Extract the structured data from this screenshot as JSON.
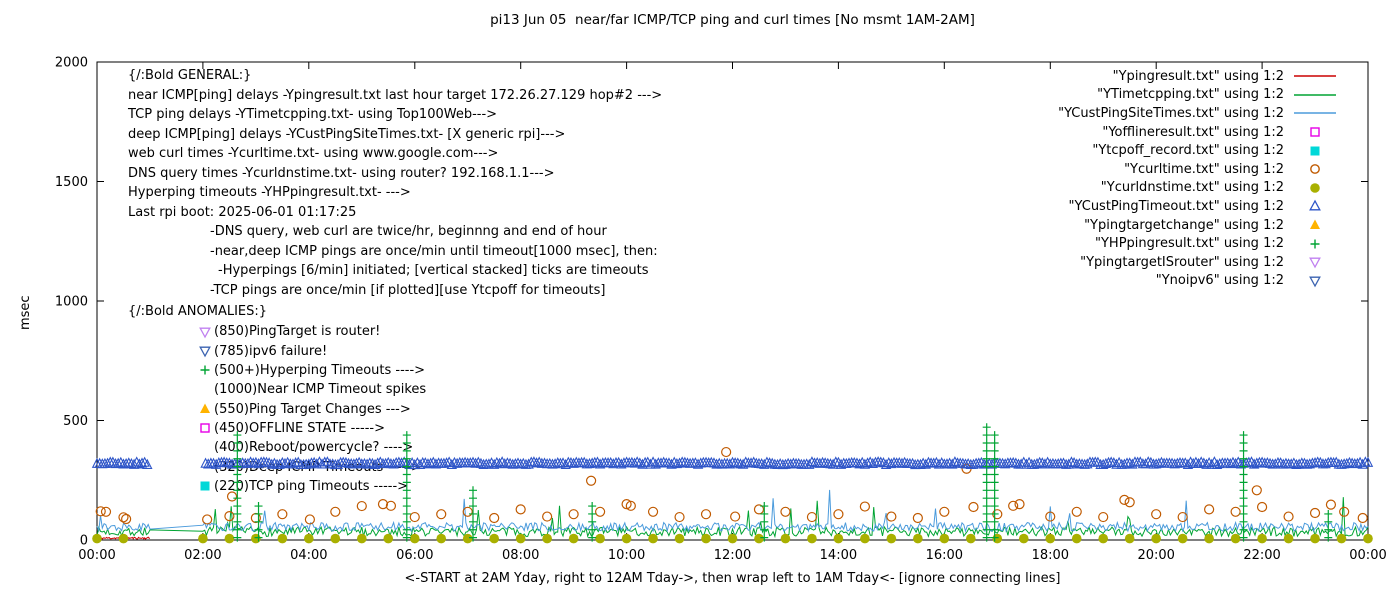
{
  "title": "pi13 Jun 05  near/far ICMP/TCP ping and curl times [No msmt 1AM-2AM]",
  "axes": {
    "ylabel": "msec",
    "x_caption": "<-START at 2AM Yday, right to 12AM Tday->, then wrap left to 1AM Tday<- [ignore connecting lines]"
  },
  "legend": [
    {
      "label": "\"Ypingresult.txt\" using 1:2",
      "marker": "hline",
      "color": "#cc0000"
    },
    {
      "label": "\"YTimetcpping.txt\" using 1:2",
      "marker": "hline",
      "color": "#00a433"
    },
    {
      "label": "\"YCustPingSiteTimes.txt\" using 1:2",
      "marker": "hline",
      "color": "#4b9bdc"
    },
    {
      "label": "\"Yofflineresult.txt\" using 1:2",
      "marker": "square-open",
      "color": "#e600e6"
    },
    {
      "label": "\"Ytcpoff_record.txt\" using 1:2",
      "marker": "square-filled",
      "color": "#00d8d8"
    },
    {
      "label": "\"Ycurltime.txt\" using 1:2",
      "marker": "circle-open",
      "color": "#c05a00"
    },
    {
      "label": "\"Ycurldnstime.txt\" using 1:2",
      "marker": "circle-filled",
      "color": "#a9b000"
    },
    {
      "label": "\"YCustPingTimeout.txt\" using 1:2",
      "marker": "tri-up-open",
      "color": "#2e55c8"
    },
    {
      "label": "\"Ypingtargetchange\" using 1:2",
      "marker": "tri-up-filled",
      "color": "#ffb300"
    },
    {
      "label": "\"YHPpingresult.txt\" using 1:2",
      "marker": "plus",
      "color": "#00a433"
    },
    {
      "label": "\"YpingtargetISrouter\" using 1:2",
      "marker": "tri-down-open",
      "color": "#c080f0"
    },
    {
      "label": "\"Ynoipv6\" using 1:2",
      "marker": "tri-down-open",
      "color": "#3a62b0"
    }
  ],
  "general_block": {
    "lines": [
      {
        "indent": 0,
        "text": "{/:Bold GENERAL:}"
      },
      {
        "indent": 0,
        "text": "near ICMP[ping] delays -Ypingresult.txt last hour target 172.26.27.129 hop#2 --->"
      },
      {
        "indent": 0,
        "text": "TCP ping delays -YTimetcpping.txt- using Top100Web--->"
      },
      {
        "indent": 0,
        "text": "deep ICMP[ping] delays -YCustPingSiteTimes.txt- [X generic rpi]--->"
      },
      {
        "indent": 0,
        "text": "web curl times -Ycurltime.txt- using www.google.com--->"
      },
      {
        "indent": 0,
        "text": "DNS query times -Ycurldnstime.txt- using router? 192.168.1.1--->"
      },
      {
        "indent": 0,
        "text": "Hyperping timeouts -YHPpingresult.txt- --->"
      },
      {
        "indent": 0,
        "text": "Last rpi boot: 2025-06-01 01:17:25"
      },
      {
        "indent": 1,
        "text": "-DNS query, web curl are twice/hr, beginnng and end of hour"
      },
      {
        "indent": 1,
        "text": "-near,deep ICMP pings are once/min until timeout[1000 msec], then:"
      },
      {
        "indent": 2,
        "text": "-Hyperpings [6/min] initiated; [vertical stacked] ticks are timeouts"
      },
      {
        "indent": 1,
        "text": "-TCP pings are once/min [if plotted][use Ytcpoff for timeouts]"
      }
    ]
  },
  "anomalies_block": {
    "heading": "{/:Bold ANOMALIES:}",
    "items": [
      {
        "marker": "tri-down-open",
        "color": "#c080f0",
        "text": "(850)PingTarget is router!"
      },
      {
        "marker": "tri-down-open",
        "color": "#3a62b0",
        "text": "(785)ipv6 failure!"
      },
      {
        "marker": "plus",
        "color": "#00a433",
        "text": "(500+)Hyperping Timeouts ---->"
      },
      {
        "marker": "none",
        "color": "",
        "text": "(1000)Near ICMP Timeout spikes"
      },
      {
        "marker": "tri-up-filled",
        "color": "#ffb300",
        "text": "(550)Ping Target Changes --->"
      },
      {
        "marker": "square-open",
        "color": "#e600e6",
        "text": "(450)OFFLINE STATE ----->"
      },
      {
        "marker": "none",
        "color": "",
        "text": "(400)Reboot/powercycle? ---->"
      },
      {
        "marker": "none",
        "color": "",
        "text": "(320)Deep ICMP Timeouts ----->"
      },
      {
        "marker": "square-filled",
        "color": "#00d8d8",
        "text": "(220)TCP ping Timeouts ----->"
      }
    ]
  },
  "chart_data": {
    "type": "line",
    "x_unit": "hours",
    "xlim": [
      0,
      24
    ],
    "ylim": [
      0,
      2000
    ],
    "grid": false,
    "no_measurement_gap_hours": [
      1,
      2
    ],
    "x_ticks": [
      {
        "h": 0,
        "label": "00:00"
      },
      {
        "h": 2,
        "label": "02:00"
      },
      {
        "h": 4,
        "label": "04:00"
      },
      {
        "h": 6,
        "label": "06:00"
      },
      {
        "h": 8,
        "label": "08:00"
      },
      {
        "h": 10,
        "label": "10:00"
      },
      {
        "h": 12,
        "label": "12:00"
      },
      {
        "h": 14,
        "label": "14:00"
      },
      {
        "h": 16,
        "label": "16:00"
      },
      {
        "h": 18,
        "label": "18:00"
      },
      {
        "h": 20,
        "label": "20:00"
      },
      {
        "h": 22,
        "label": "22:00"
      },
      {
        "h": 24,
        "label": "00:00"
      }
    ],
    "y_ticks": [
      {
        "v": 0,
        "label": "0"
      },
      {
        "v": 500,
        "label": "500"
      },
      {
        "v": 1000,
        "label": "1000"
      },
      {
        "v": 1500,
        "label": "1500"
      },
      {
        "v": 2000,
        "label": "2000"
      }
    ],
    "series": [
      {
        "name": "Ypingresult",
        "style": "line",
        "color": "#cc0000",
        "gen": {
          "kind": "noise",
          "ranges": [
            [
              0,
              1
            ]
          ],
          "step_min": 1,
          "baseline": 8,
          "amp": 4,
          "seed": 11
        }
      },
      {
        "name": "YTimetcpping",
        "style": "line",
        "color": "#00a433",
        "gen": {
          "kind": "noise",
          "ranges": [
            [
              0,
              1
            ],
            [
              2,
              24
            ]
          ],
          "step_min": 2,
          "baseline": 35,
          "amp": 20,
          "spike_chance": 0.02,
          "spike_min": 70,
          "spike_max": 185,
          "seed": 7
        }
      },
      {
        "name": "YCustPingSiteTimes",
        "style": "line",
        "color": "#4b9bdc",
        "gen": {
          "kind": "noise",
          "ranges": [
            [
              0,
              1
            ],
            [
              2,
              24
            ]
          ],
          "step_min": 2,
          "baseline": 55,
          "amp": 18,
          "spike_chance": 0.012,
          "spike_min": 90,
          "spike_max": 235,
          "seed": 13
        }
      },
      {
        "name": "Yofflineresult",
        "style": "scatter",
        "marker": "square-open",
        "color": "#e600e6",
        "points": []
      },
      {
        "name": "Ytcpoff_record",
        "style": "scatter",
        "marker": "square-filled",
        "color": "#00d8d8",
        "points": []
      },
      {
        "name": "Ycurltime",
        "style": "scatter",
        "marker": "circle-open",
        "color": "#c05a00",
        "points": [
          [
            0.07,
            120
          ],
          [
            0.17,
            118
          ],
          [
            0.5,
            95
          ],
          [
            0.55,
            88
          ],
          [
            2.08,
            86
          ],
          [
            2.5,
            100
          ],
          [
            2.55,
            182
          ],
          [
            3.0,
            92
          ],
          [
            3.5,
            108
          ],
          [
            4.02,
            86
          ],
          [
            4.5,
            118
          ],
          [
            5.0,
            142
          ],
          [
            5.4,
            150
          ],
          [
            5.55,
            143
          ],
          [
            6.0,
            96
          ],
          [
            6.5,
            108
          ],
          [
            7.0,
            118
          ],
          [
            7.5,
            92
          ],
          [
            8.0,
            128
          ],
          [
            8.5,
            98
          ],
          [
            9.0,
            108
          ],
          [
            9.33,
            248
          ],
          [
            9.5,
            118
          ],
          [
            10.0,
            150
          ],
          [
            10.08,
            143
          ],
          [
            10.5,
            118
          ],
          [
            11.0,
            96
          ],
          [
            11.5,
            108
          ],
          [
            11.88,
            368
          ],
          [
            12.05,
            98
          ],
          [
            12.5,
            128
          ],
          [
            13.0,
            118
          ],
          [
            13.5,
            96
          ],
          [
            14.0,
            108
          ],
          [
            14.5,
            140
          ],
          [
            15.0,
            98
          ],
          [
            15.5,
            92
          ],
          [
            16.0,
            118
          ],
          [
            16.42,
            298
          ],
          [
            16.55,
            138
          ],
          [
            17.0,
            108
          ],
          [
            17.3,
            143
          ],
          [
            17.42,
            150
          ],
          [
            18.0,
            98
          ],
          [
            18.5,
            118
          ],
          [
            19.0,
            96
          ],
          [
            19.4,
            168
          ],
          [
            19.5,
            158
          ],
          [
            20.0,
            108
          ],
          [
            20.5,
            96
          ],
          [
            21.0,
            128
          ],
          [
            21.5,
            118
          ],
          [
            21.9,
            208
          ],
          [
            22.0,
            138
          ],
          [
            22.5,
            98
          ],
          [
            23.0,
            113
          ],
          [
            23.3,
            148
          ],
          [
            23.55,
            118
          ],
          [
            23.9,
            92
          ]
        ]
      },
      {
        "name": "Ycurldnstime",
        "style": "interval-scatter",
        "marker": "circle-filled",
        "color": "#a9b000",
        "gen": {
          "ranges": [
            [
              0,
              0.99
            ],
            [
              2,
              24
            ]
          ],
          "step_h": 0.5,
          "y": 6
        }
      },
      {
        "name": "YCustPingTimeout",
        "style": "tri-row",
        "color": "#2e55c8",
        "gen": {
          "ranges": [
            [
              0,
              0.95
            ],
            [
              2.05,
              24
            ]
          ],
          "step_h": 0.05,
          "y": 320,
          "jitter": 6,
          "seed": 21
        }
      },
      {
        "name": "Ypingtargetchange",
        "style": "scatter",
        "marker": "tri-up-filled",
        "color": "#ffb300",
        "points": []
      },
      {
        "name": "YHPpingresult",
        "style": "vstack-plus",
        "color": "#00a433",
        "gen": {
          "step": 33,
          "stacks": [
            [
              2.65,
              460
            ],
            [
              3.05,
              170
            ],
            [
              5.85,
              470
            ],
            [
              7.1,
              210
            ],
            [
              9.35,
              150
            ],
            [
              12.6,
              150
            ],
            [
              16.8,
              500
            ],
            [
              16.95,
              470
            ],
            [
              21.65,
              460
            ],
            [
              23.25,
              140
            ]
          ]
        }
      },
      {
        "name": "YpingtargetISrouter",
        "style": "scatter",
        "marker": "tri-down-open",
        "color": "#c080f0",
        "points": []
      },
      {
        "name": "Ynoipv6",
        "style": "scatter",
        "marker": "tri-down-open",
        "color": "#3a62b0",
        "points": []
      }
    ]
  }
}
